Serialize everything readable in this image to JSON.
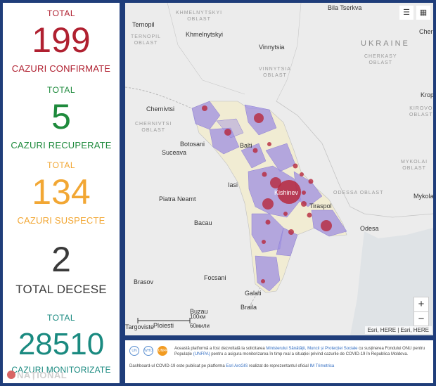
{
  "stats": {
    "confirmed": {
      "top": "TOTAL",
      "value": "199",
      "label": "CAZURI CONFIRMATE",
      "color": "#b02030"
    },
    "recovered": {
      "top": "TOTAL",
      "value": "5",
      "label": "CAZURI RECUPERATE",
      "color": "#1e8a3c"
    },
    "suspected": {
      "top": "TOTAL",
      "value": "134",
      "label": "CAZURI SUSPECTE",
      "color": "#f2a734"
    },
    "deaths": {
      "value": "2",
      "label": "TOTAL DECESE",
      "color": "#3a3a3a"
    },
    "monitored": {
      "top": "TOTAL",
      "value": "28510",
      "label": "CAZURI MONITORIZATE",
      "color": "#1a8a80"
    }
  },
  "logo": "NAȚIONAL",
  "map": {
    "cities": {
      "bila_tserkva": "Bila Tserkva",
      "ternopil": "Ternopil",
      "khmelnytskyi": "Khmelnytskyi",
      "vinnytsia": "Vinnytsia",
      "cherk": "Cherk",
      "kropy": "Kropy",
      "chernivtsi": "Chernivtsi",
      "botosani": "Botosani",
      "suceava": "Suceava",
      "balti": "Balti",
      "iasi": "Iasi",
      "kishinev": "Kishinev",
      "tiraspol": "Tiraspol",
      "odesa": "Odesa",
      "mykola": "Mykola",
      "piatra_neamt": "Piatra Neamt",
      "bacau": "Bacau",
      "focsani": "Focsani",
      "brasov": "Brasov",
      "galati": "Galati",
      "braila": "Braila",
      "buzau": "Buzau",
      "targoviste": "Targoviste",
      "ploiesti": "Ploiesti"
    },
    "regions": {
      "khmelnytskyi_oblast": "KHMELNYTSKYI\nOBLAST",
      "ternopil_oblast": "TERNOPIL\nOBLAST",
      "vinnytsia_oblast": "VINNYTSIA\nOBLAST",
      "cherkasy_oblast": "CHERKASY\nOBLAST",
      "kirovohrad_oblast": "KIROVO\nOBLAST",
      "chernivtsi_oblast": "CHERNIVTSI\nOBLAST",
      "odessa_oblast": "ODESSA OBLAST",
      "mykolaiv_oblast": "MYKOLAI\nOBLAST"
    },
    "country": "UKRAINE",
    "scale_km": "100км",
    "scale_mi": "60мили",
    "attribution": "Esri, HERE | Esri, HERE",
    "zoom_in": "+",
    "zoom_out": "−",
    "accent_bubble": "#b7283c",
    "district_fill": "#9d8fe0"
  },
  "footer": {
    "line1": "Această platformă a fost dezvoltată la solicitarea",
    "ministry": "Ministerului Sănătății, Muncii și Protecției Sociale",
    "line1b": "cu susținerea Fondului ONU pentru Populație",
    "unfpa": "(UNFPA)",
    "line1c": "pentru a asigura monitorizarea în timp real a situației privind cazurile de COVID-19 în Republica Moldova.",
    "line2": "Dashboard-ul COVID-19 este publicat pe platforma",
    "esri": "Esri ArcGIS",
    "line2b": "realizat de reprezentantul oficial",
    "im": "IM Trimetrica",
    "logo_unfpa": "UNFPA",
    "logo_un": "UN",
    "logo_who": "WHO"
  }
}
